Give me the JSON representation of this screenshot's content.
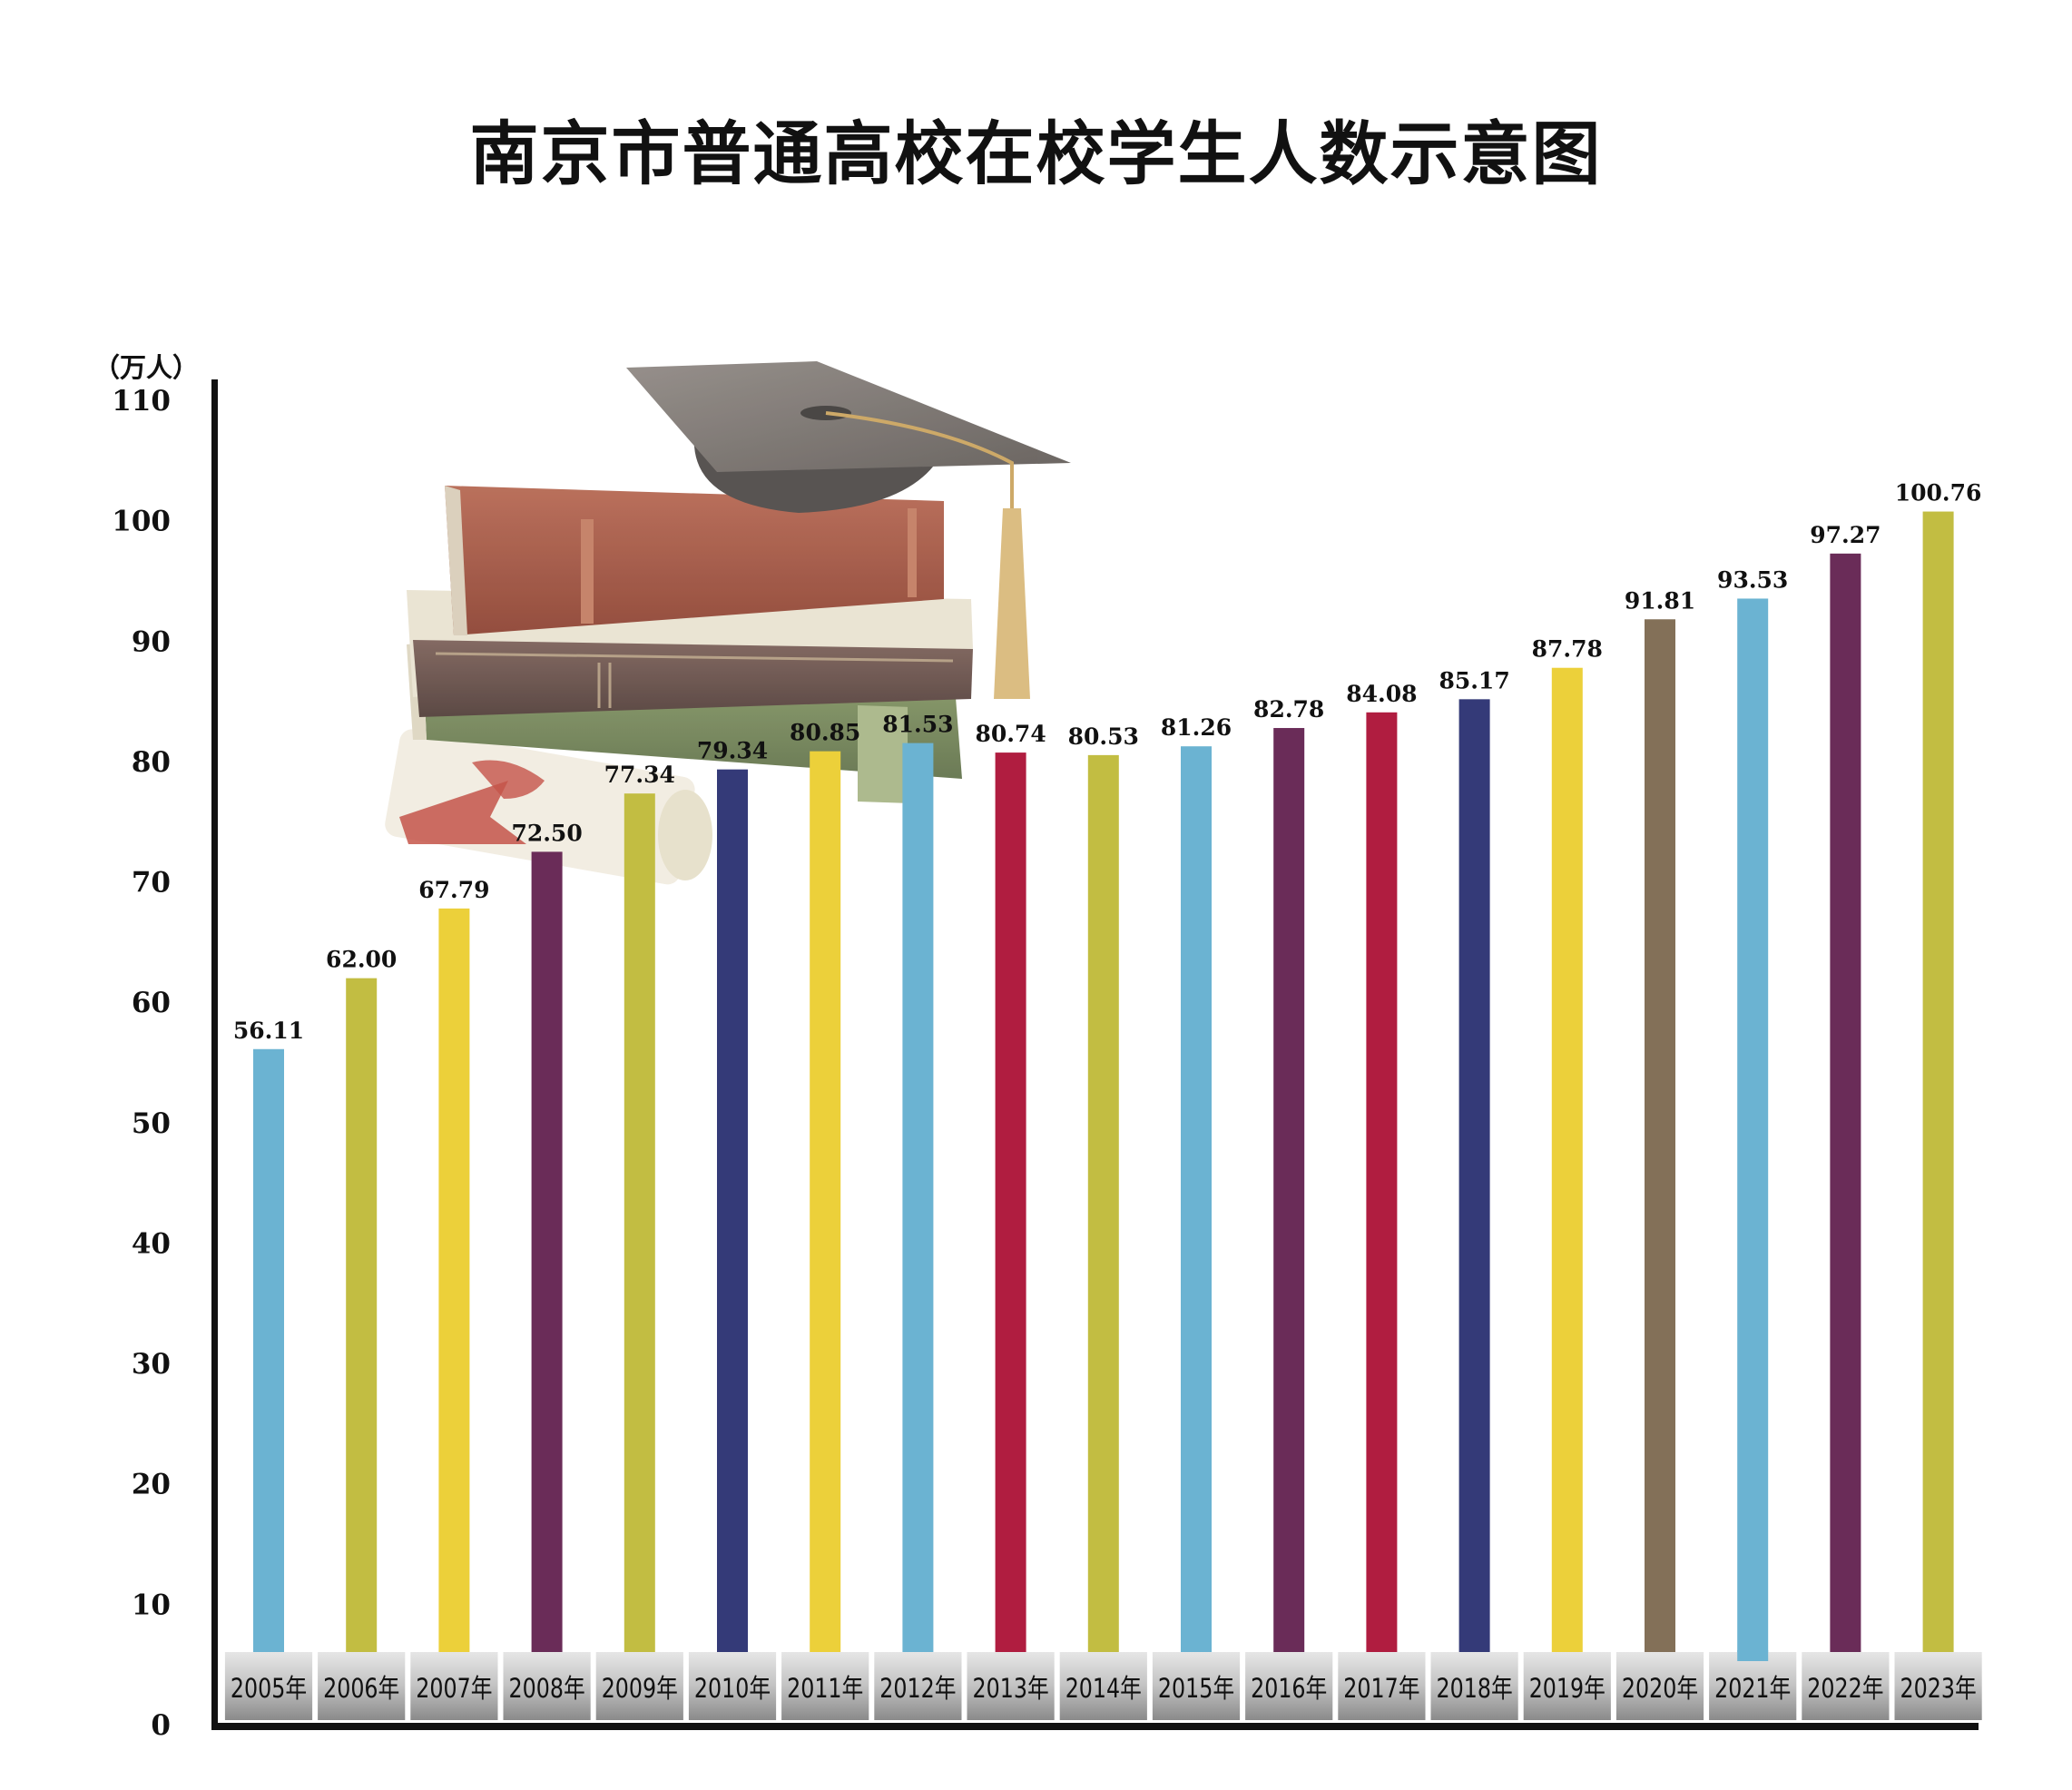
{
  "chart_data": {
    "type": "bar",
    "title": "南京市普通高校在校学生人数示意图",
    "ylabel": "（万人）",
    "xlabel": "",
    "ylim": [
      0,
      110
    ],
    "yticks": [
      0,
      10,
      20,
      30,
      40,
      50,
      60,
      70,
      80,
      90,
      100,
      110
    ],
    "grid": false,
    "categories": [
      "2005年",
      "2006年",
      "2007年",
      "2008年",
      "2009年",
      "2010年",
      "2011年",
      "2012年",
      "2013年",
      "2014年",
      "2015年",
      "2016年",
      "2017年",
      "2018年",
      "2019年",
      "2020年",
      "2021年",
      "2022年",
      "2023年"
    ],
    "values": [
      56.11,
      62.0,
      67.79,
      72.5,
      77.34,
      79.34,
      80.85,
      81.53,
      80.74,
      80.53,
      81.26,
      82.78,
      84.08,
      85.17,
      87.78,
      91.81,
      93.53,
      97.27,
      100.76
    ],
    "value_labels": [
      "56.11",
      "62.00",
      "67.79",
      "72.50",
      "77.34",
      "79.34",
      "80.85",
      "81.53",
      "80.74",
      "80.53",
      "81.26",
      "82.78",
      "84.08",
      "85.17",
      "87.78",
      "91.81",
      "93.53",
      "97.27",
      "100.76"
    ],
    "colors": [
      "#6bb3d2",
      "#c2bd42",
      "#ecd03a",
      "#6a2c58",
      "#c2bd42",
      "#343a78",
      "#ecd03a",
      "#6bb3d2",
      "#b01d40",
      "#c2bd42",
      "#6bb3d2",
      "#6a2c58",
      "#b01d40",
      "#343a78",
      "#ecd03a",
      "#837058",
      "#6bb3d2",
      "#6a2c58",
      "#c2bd42"
    ],
    "illustration": "graduation-cap-and-books"
  }
}
